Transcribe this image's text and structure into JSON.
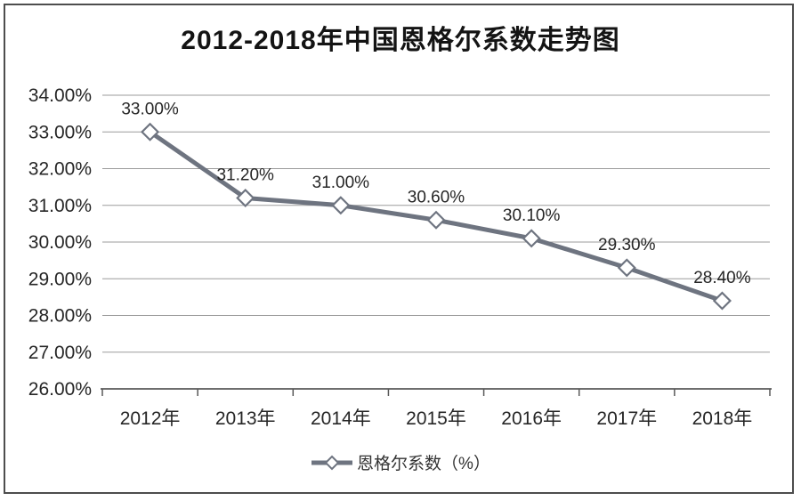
{
  "frame": {
    "border_color": "#4d4d4d",
    "background": "#ffffff"
  },
  "chart_data": {
    "type": "line",
    "title": "2012-2018年中国恩格尔系数走势图",
    "categories": [
      "2012年",
      "2013年",
      "2014年",
      "2015年",
      "2016年",
      "2017年",
      "2018年"
    ],
    "series": [
      {
        "name": "恩格尔系数（%）",
        "values": [
          33.0,
          31.2,
          31.0,
          30.6,
          30.1,
          29.3,
          28.4
        ]
      }
    ],
    "data_labels": [
      "33.00%",
      "31.20%",
      "31.00%",
      "30.60%",
      "30.10%",
      "29.30%",
      "28.40%"
    ],
    "y_ticks": [
      34,
      33,
      32,
      31,
      30,
      29,
      28,
      27,
      26
    ],
    "y_tick_labels": [
      "34.00%",
      "33.00%",
      "32.00%",
      "31.00%",
      "30.00%",
      "29.00%",
      "28.00%",
      "27.00%",
      "26.00%"
    ],
    "ylim": [
      26,
      34
    ],
    "xlabel": "",
    "ylabel": "",
    "grid": true,
    "legend_position": "bottom",
    "legend_label": "恩格尔系数（%）",
    "marker": "open-diamond",
    "colors": {
      "line": "#6E7480",
      "marker_fill": "#FFFFFF",
      "marker_stroke": "#6E7480",
      "gridline": "#9B9B9B",
      "axis": "#595959",
      "text": "#262626",
      "title": "#141414",
      "background": "#FFFFFF"
    }
  }
}
